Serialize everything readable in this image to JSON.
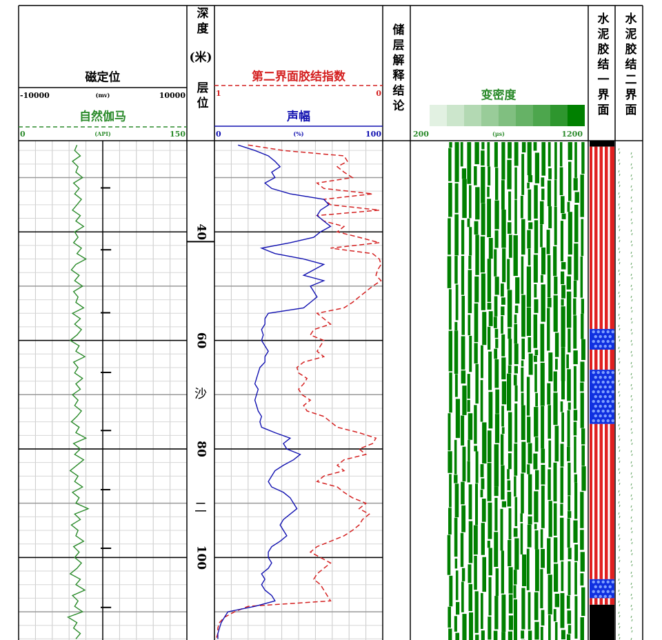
{
  "chart_data": {
    "type": "well-log",
    "depth_title": "深度",
    "depth_unit": "(米)",
    "zone_title": "层位",
    "depth_range": [
      23.2,
      115.2
    ],
    "depth_ticks": [
      40,
      60,
      80,
      100
    ],
    "depth_grid": [
      30,
      40,
      50,
      60,
      70,
      80,
      90,
      100,
      110
    ],
    "depth_minor_grid": [
      25,
      27.5,
      30,
      32.5,
      35,
      37.5,
      40,
      42.5,
      45,
      47.5,
      50,
      52.5,
      55,
      57.5,
      60,
      62.5,
      65,
      67.5,
      70,
      72.5,
      75,
      77.5,
      80,
      82.5,
      85,
      87.5,
      90,
      92.5,
      95,
      97.5,
      100,
      102.5,
      105,
      107.5,
      110,
      112.5,
      115
    ],
    "x_divisions": 10,
    "zone_top": 41.8,
    "zone_label": [
      "沙",
      "二"
    ],
    "depth": [
      24,
      25,
      26,
      27,
      28,
      29,
      30,
      31,
      32,
      33,
      34,
      35,
      36,
      37,
      38,
      39,
      40,
      41,
      42,
      43,
      44,
      45,
      46,
      47,
      48,
      49,
      50,
      51,
      52,
      53,
      54,
      55,
      56,
      57,
      58,
      59,
      60,
      61,
      62,
      63,
      64,
      65,
      66,
      67,
      68,
      69,
      70,
      71,
      72,
      73,
      74,
      75,
      76,
      77,
      78,
      79,
      80,
      81,
      82,
      83,
      84,
      85,
      86,
      87,
      88,
      89,
      90,
      91,
      92,
      93,
      94,
      95,
      96,
      97,
      98,
      99,
      100,
      101,
      102,
      103,
      104,
      105,
      106,
      107,
      108,
      109,
      110,
      111,
      112,
      113,
      114,
      115
    ],
    "ccl": {
      "name": "磁定位",
      "unit": "(mv)",
      "color": "#000000",
      "xlim": [
        -10000,
        10000
      ],
      "depths": [
        31.9,
        43.3,
        54.9,
        65.9,
        76.6,
        87.5,
        98.3,
        109.2
      ],
      "values": [
        900,
        1000,
        900,
        1000,
        1000,
        900,
        1000,
        1000
      ]
    },
    "gamma": {
      "name": "自然伽马",
      "unit": "(API)",
      "color": "#2a8a2a",
      "xlim": [
        0,
        150
      ],
      "values": [
        52,
        50,
        55,
        48,
        53,
        51,
        57,
        49,
        54,
        50,
        56,
        52,
        48,
        55,
        51,
        58,
        50,
        53,
        49,
        56,
        52,
        60,
        51,
        47,
        54,
        50,
        57,
        49,
        53,
        51,
        58,
        48,
        55,
        50,
        56,
        52,
        46,
        54,
        51,
        59,
        49,
        53,
        50,
        57,
        51,
        55,
        48,
        53,
        50,
        56,
        52,
        47,
        54,
        51,
        60,
        49,
        55,
        50,
        58,
        52,
        46,
        53,
        50,
        57,
        48,
        54,
        51,
        62,
        50,
        55,
        47,
        53,
        51,
        58,
        49,
        54,
        50,
        56,
        52,
        46,
        55,
        51,
        59,
        48,
        53,
        50,
        57,
        44,
        52,
        49,
        55,
        51
      ]
    },
    "bond_index": {
      "name": "第二界面胶结指数",
      "color": "#d42020",
      "xlim": [
        1,
        0
      ],
      "values": [
        0.8,
        0.59,
        0.23,
        0.21,
        0.27,
        0.23,
        0.18,
        0.39,
        0.35,
        0.06,
        0.35,
        0.31,
        0.02,
        0.39,
        0.35,
        0.23,
        0.27,
        0.14,
        0.02,
        0.31,
        0.06,
        0.02,
        0.01,
        0.03,
        0.04,
        0.01,
        0.06,
        0.1,
        0.14,
        0.18,
        0.23,
        0.39,
        0.35,
        0.31,
        0.41,
        0.43,
        0.35,
        0.37,
        0.39,
        0.35,
        0.47,
        0.51,
        0.5,
        0.45,
        0.47,
        0.5,
        0.48,
        0.43,
        0.47,
        0.45,
        0.35,
        0.31,
        0.27,
        0.14,
        0.04,
        0.06,
        0.14,
        0.1,
        0.23,
        0.27,
        0.23,
        0.35,
        0.39,
        0.27,
        0.23,
        0.18,
        0.1,
        0.14,
        0.08,
        0.12,
        0.14,
        0.18,
        0.23,
        0.31,
        0.39,
        0.43,
        0.37,
        0.31,
        0.35,
        0.39,
        0.41,
        0.37,
        0.35,
        0.33,
        0.31,
        0.8,
        0.88,
        0.94,
        0.97,
        0.98,
        0.98,
        0.99
      ]
    },
    "amplitude": {
      "name": "声幅",
      "unit": "(%)",
      "color": "#1010b0",
      "xlim": [
        0,
        100
      ],
      "values": [
        14,
        24,
        32,
        36,
        39,
        34,
        36,
        30,
        34,
        45,
        65,
        68,
        63,
        61,
        65,
        69,
        63,
        59,
        45,
        28,
        36,
        53,
        65,
        59,
        53,
        65,
        57,
        59,
        61,
        57,
        53,
        32,
        30,
        30,
        28,
        29,
        28,
        30,
        32,
        30,
        30,
        27,
        26,
        25,
        24,
        26,
        25,
        24,
        25,
        26,
        28,
        27,
        28,
        36,
        45,
        41,
        43,
        51,
        47,
        41,
        36,
        34,
        32,
        34,
        41,
        45,
        47,
        49,
        45,
        41,
        39,
        41,
        43,
        39,
        34,
        32,
        32,
        34,
        32,
        28,
        30,
        28,
        30,
        34,
        36,
        24,
        8,
        6,
        4,
        3,
        2,
        2
      ]
    },
    "interpretation_title": "储层解释结论",
    "vdl": {
      "name": "变密度",
      "unit": "(μs)",
      "color": "#008000",
      "xlim": [
        200,
        1200
      ]
    },
    "bond1": {
      "name": "水泥胶结一界面",
      "intervals": [
        {
          "top": 23.2,
          "bottom": 24.3,
          "color": "#000000"
        },
        {
          "top": 24.3,
          "bottom": 57.9,
          "color": "#e02020"
        },
        {
          "top": 57.9,
          "bottom": 61.7,
          "color": "#1030e0"
        },
        {
          "top": 61.7,
          "bottom": 65.4,
          "color": "#e02020"
        },
        {
          "top": 65.4,
          "bottom": 75.4,
          "color": "#1030e0"
        },
        {
          "top": 75.4,
          "bottom": 104,
          "color": "#e02020"
        },
        {
          "top": 104,
          "bottom": 107.5,
          "color": "#1030e0"
        },
        {
          "top": 107.5,
          "bottom": 108.7,
          "color": "#e02020"
        },
        {
          "top": 108.7,
          "bottom": 115.2,
          "color": "#000000"
        }
      ]
    },
    "bond2": {
      "name": "水泥胶结二界面"
    }
  }
}
